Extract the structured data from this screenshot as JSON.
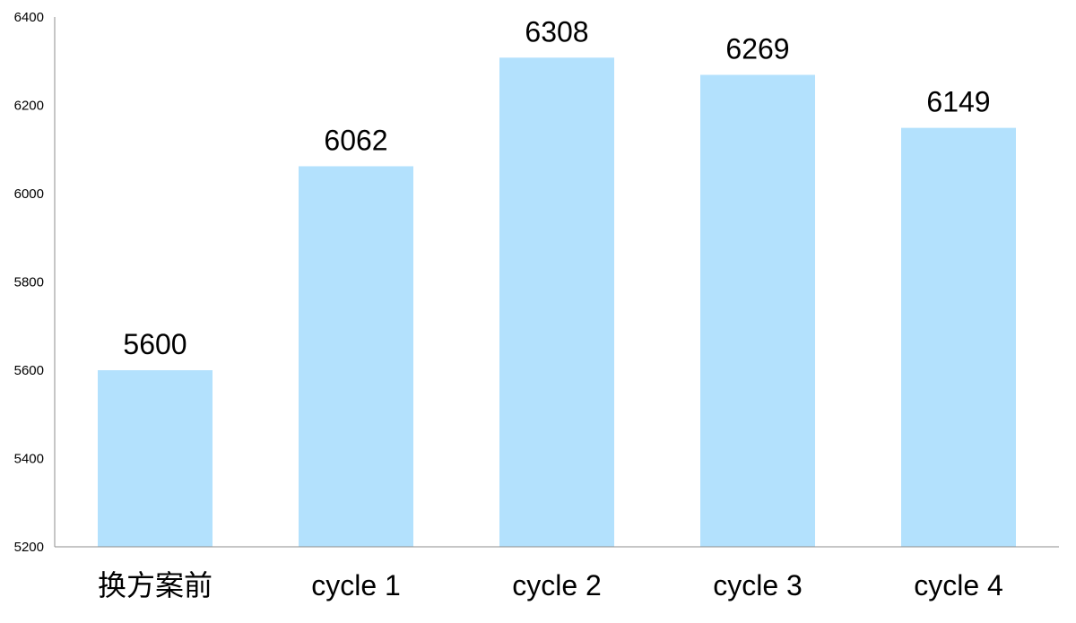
{
  "chart_data": {
    "type": "bar",
    "title": "",
    "xlabel": "",
    "ylabel": "",
    "categories": [
      "换方案前",
      "cycle 1",
      "cycle 2",
      "cycle 3",
      "cycle 4"
    ],
    "values": [
      5600,
      6062,
      6308,
      6269,
      6149
    ],
    "data_labels": [
      "5600",
      "6062",
      "6308",
      "6269",
      "6149"
    ],
    "ylim": [
      5200,
      6400
    ],
    "yticks": [
      5200,
      5400,
      5600,
      5800,
      6000,
      6200,
      6400
    ],
    "ytick_labels": [
      "5200",
      "5400",
      "5600",
      "5800",
      "6000",
      "6200",
      "6400"
    ],
    "grid": false,
    "legend": "none",
    "colors": {
      "bar": "#b3e1fd",
      "axis": "#8c8c8c",
      "text": "#000000"
    }
  }
}
